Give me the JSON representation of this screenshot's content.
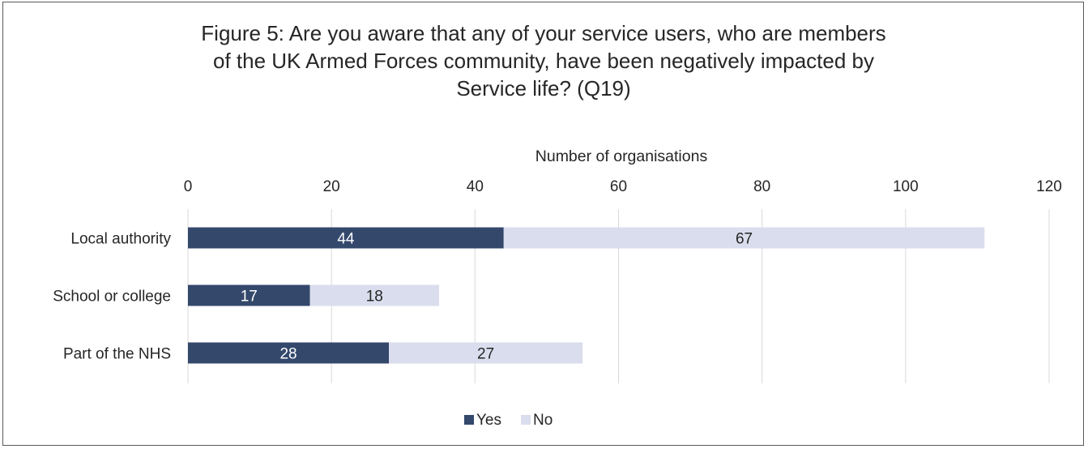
{
  "chart_data": {
    "type": "bar",
    "orientation": "horizontal",
    "stacked": true,
    "title_lines": [
      "Figure 5: Are you aware that any of your service users, who are members",
      "of the UK Armed Forces community, have been negatively impacted by",
      "Service life? (Q19)"
    ],
    "xlabel": "Number of organisations",
    "ylabel": "",
    "xlim": [
      0,
      120
    ],
    "ticks": [
      0,
      20,
      40,
      60,
      80,
      100,
      120
    ],
    "tick_labels": [
      "0",
      "20",
      "40",
      "60",
      "80",
      "100",
      "120"
    ],
    "x_axis_position": "top",
    "grid": true,
    "categories": [
      "Local authority",
      "School or college",
      "Part of the NHS"
    ],
    "series": [
      {
        "name": "Yes",
        "values": [
          44,
          17,
          28
        ],
        "color": "#34486c",
        "label_color": "#ffffff"
      },
      {
        "name": "No",
        "values": [
          67,
          18,
          27
        ],
        "color": "#dadded",
        "label_color": "#262626"
      }
    ],
    "legend_position": "bottom"
  }
}
